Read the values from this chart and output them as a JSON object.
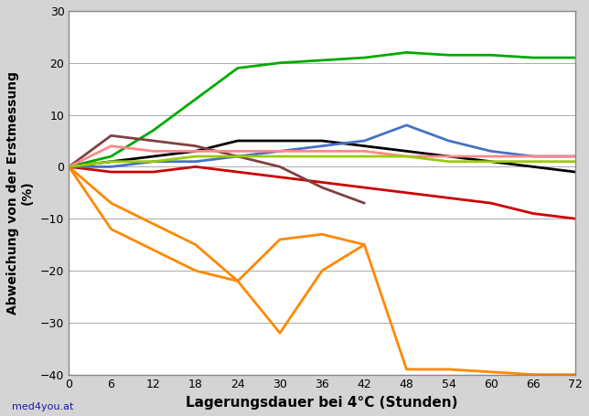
{
  "xlabel": "Lagerungsdauer bei 4°C (Stunden)",
  "ylabel": "Abweichung von der Erstmessung\n(%)",
  "watermark": "med4you.at",
  "x_ticks": [
    0,
    6,
    12,
    18,
    24,
    30,
    36,
    42,
    48,
    54,
    60,
    66,
    72
  ],
  "ylim": [
    -40,
    30
  ],
  "xlim": [
    0,
    72
  ],
  "series": [
    {
      "color": "#00aa00",
      "x": [
        0,
        6,
        12,
        18,
        24,
        30,
        36,
        42,
        48,
        54,
        60,
        66,
        72
      ],
      "y": [
        0,
        2,
        7,
        13,
        19,
        20,
        20.5,
        21,
        22,
        21.5,
        21.5,
        21,
        21
      ]
    },
    {
      "color": "#ff8800",
      "x": [
        0,
        6,
        18,
        24,
        30,
        36,
        42,
        48,
        54,
        60,
        66,
        72
      ],
      "y": [
        0,
        -12,
        -20,
        -22,
        -32,
        -20,
        -15,
        -39,
        -39,
        -39.5,
        -40,
        -40
      ]
    },
    {
      "color": "#ff8800",
      "x": [
        0,
        6,
        18,
        24,
        30,
        36,
        42
      ],
      "y": [
        0,
        -7,
        -15,
        -22,
        -14,
        -13,
        -15
      ]
    },
    {
      "color": "#cc0000",
      "x": [
        0,
        6,
        12,
        18,
        24,
        30,
        36,
        42,
        48,
        54,
        60,
        66,
        72
      ],
      "y": [
        0,
        -1,
        -1,
        0,
        -1,
        -2,
        -3,
        -4,
        -5,
        -6,
        -7,
        -9,
        -10
      ]
    },
    {
      "color": "#000000",
      "x": [
        0,
        6,
        12,
        18,
        24,
        30,
        36,
        42,
        48,
        54,
        60,
        66,
        72
      ],
      "y": [
        0,
        1,
        2,
        3,
        5,
        5,
        5,
        4,
        3,
        2,
        1,
        0,
        -1
      ]
    },
    {
      "color": "#4472c4",
      "x": [
        0,
        6,
        12,
        18,
        24,
        30,
        36,
        42,
        48,
        54,
        60,
        66,
        72
      ],
      "y": [
        0,
        0,
        1,
        1,
        2,
        3,
        4,
        5,
        8,
        5,
        3,
        2,
        2
      ]
    },
    {
      "color": "#804040",
      "x": [
        0,
        6,
        12,
        18,
        24,
        30,
        36,
        42
      ],
      "y": [
        0,
        6,
        5,
        4,
        2,
        0,
        -4,
        -7
      ]
    },
    {
      "color": "#ff8888",
      "x": [
        0,
        6,
        12,
        18,
        24,
        30,
        36,
        42,
        48,
        54,
        60,
        66,
        72
      ],
      "y": [
        0,
        4,
        3,
        3,
        3,
        3,
        3,
        3,
        2,
        2,
        2,
        2,
        2
      ]
    },
    {
      "color": "#99cc00",
      "x": [
        0,
        6,
        12,
        18,
        24,
        30,
        36,
        42,
        48,
        54,
        60,
        66,
        72
      ],
      "y": [
        0,
        1,
        1,
        2,
        2,
        2,
        2,
        2,
        2,
        1,
        1,
        1,
        1
      ]
    }
  ],
  "line_width": 2.0,
  "bg_color": "#d4d4d4",
  "plot_bg": "#ffffff",
  "grid_color": "#aaaaaa",
  "border_color": "#888888"
}
